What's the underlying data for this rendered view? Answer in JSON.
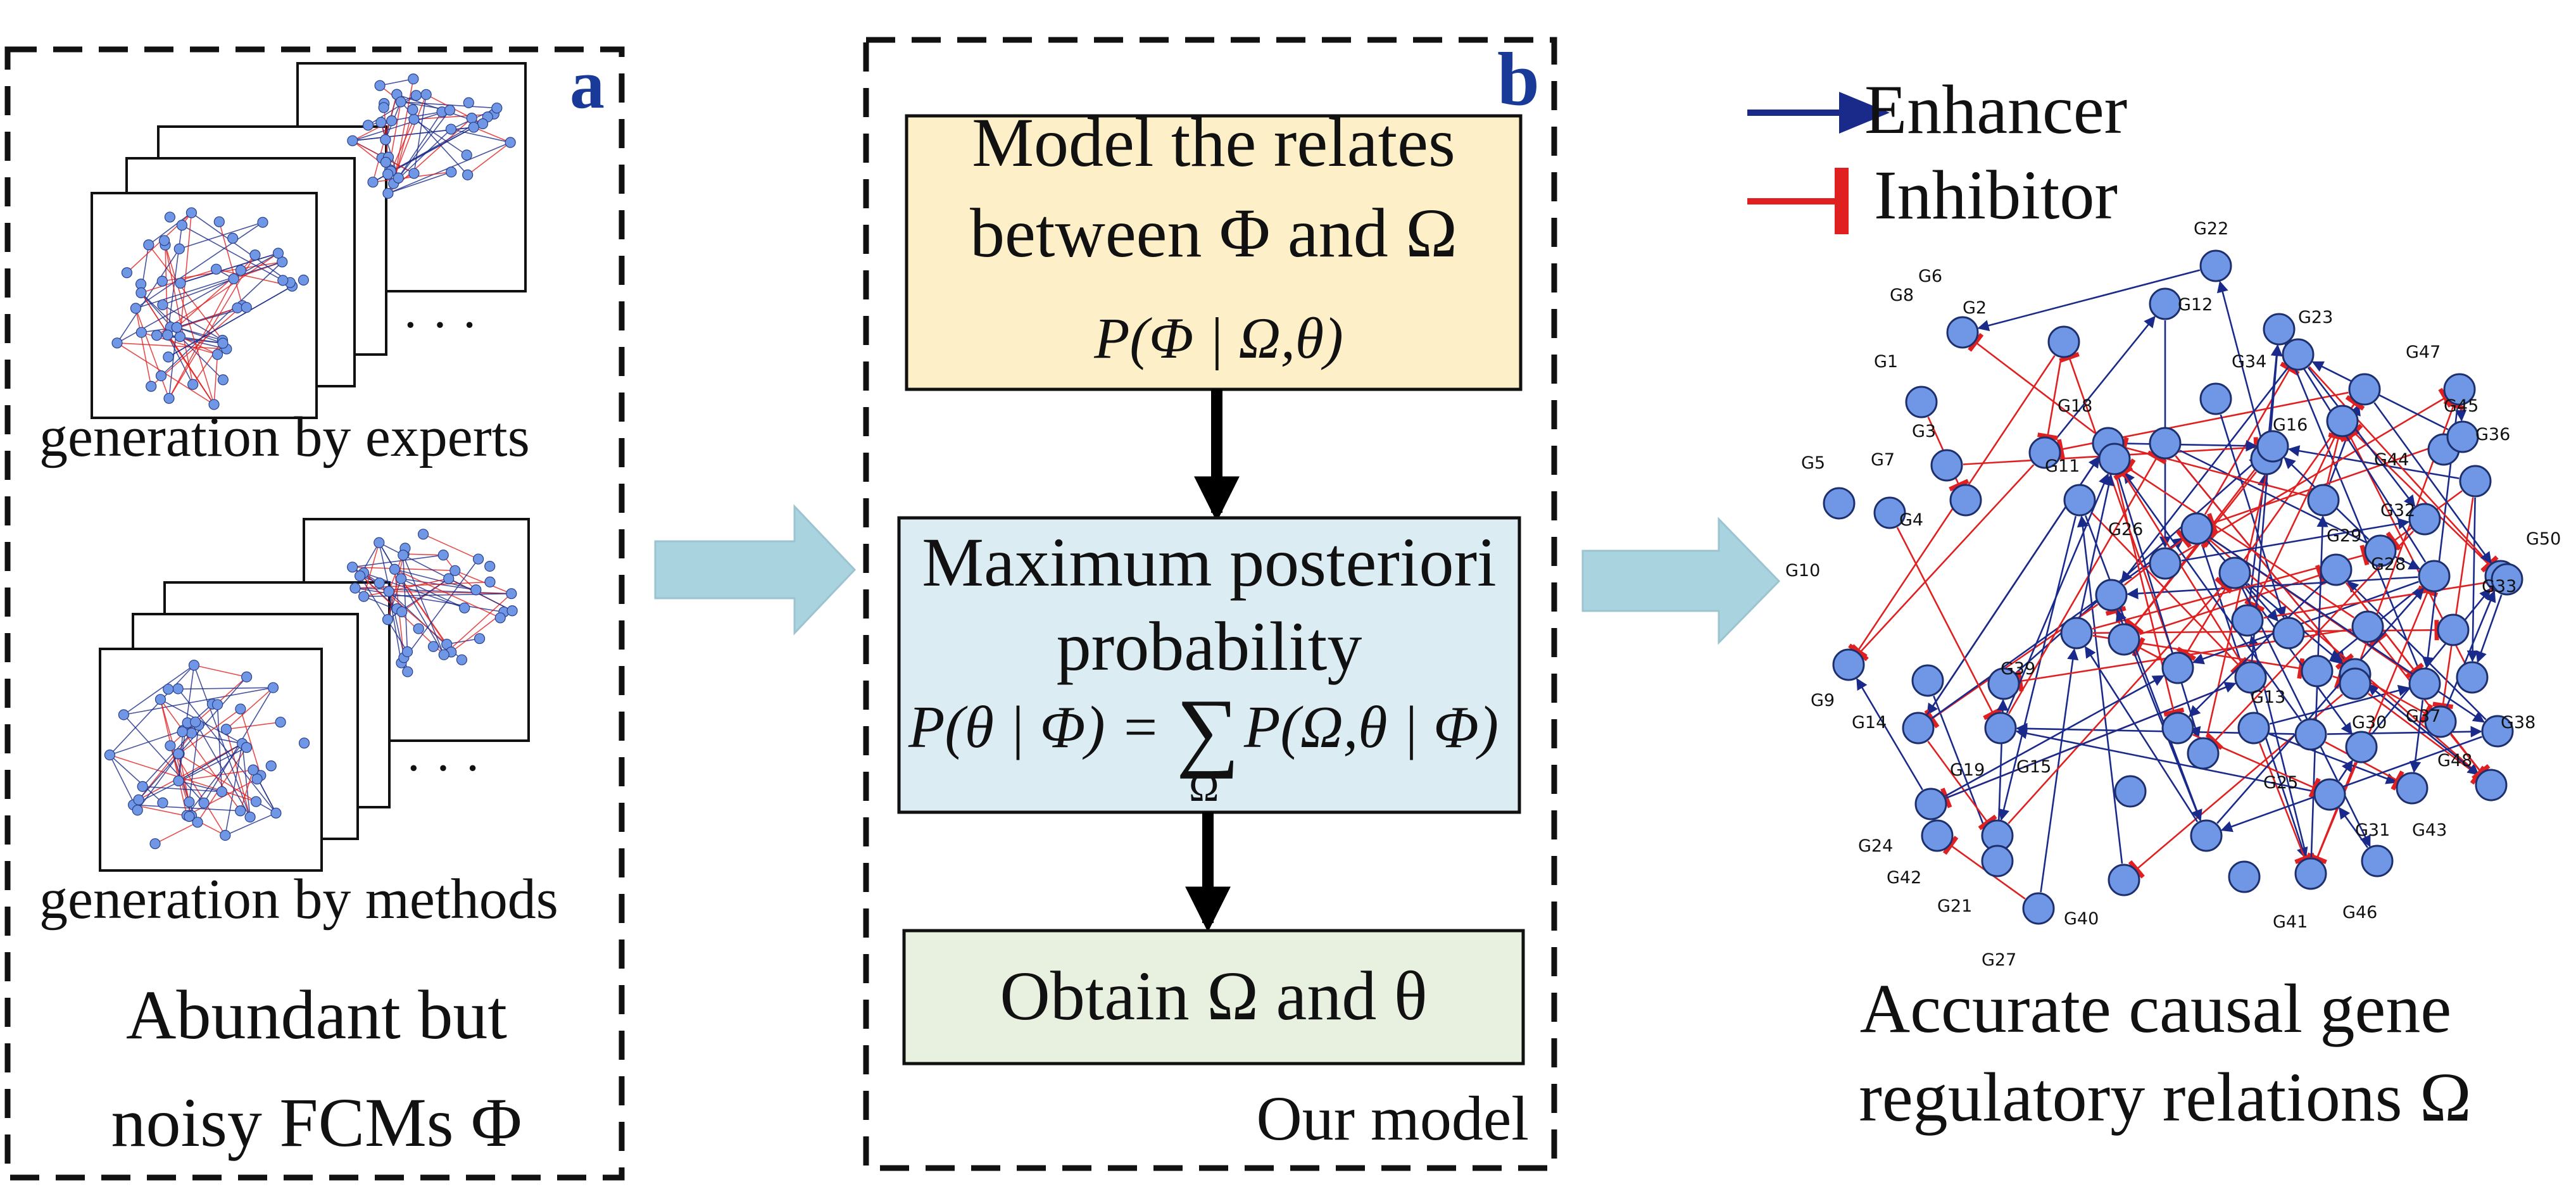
{
  "panel_a": {
    "letter": "a",
    "expert_caption": "generation by experts",
    "methods_caption": "generation by methods",
    "ellipsis": "· · ·",
    "title_line1": "Abundant but",
    "title_line2": "noisy FCMs Φ"
  },
  "panel_b": {
    "letter": "b",
    "box1_line1": "Model the relates",
    "box1_line2": "between Φ and Ω",
    "box1_formula": "P(Φ | Ω,θ)",
    "box2_line1": "Maximum posteriori",
    "box2_line2": "probability",
    "box2_formula_lhs": "P(θ | Φ) =",
    "box2_formula_sum": "∑",
    "box2_formula_sub": "Ω",
    "box2_formula_rhs": "P(Ω,θ | Φ)",
    "box3_label": "Obtain Ω and θ",
    "footer": "Our model"
  },
  "legend": {
    "enhancer": "Enhancer",
    "inhibitor": "Inhibitor"
  },
  "network_labels": [
    "G22",
    "G12",
    "G23",
    "G34",
    "G47",
    "G6",
    "G8",
    "G2",
    "G1",
    "G18",
    "G16",
    "G45",
    "G36",
    "G3",
    "G11",
    "G44",
    "G5",
    "G7",
    "G4",
    "G32",
    "G50",
    "G26",
    "G29",
    "G28",
    "G10",
    "G33",
    "G39",
    "G9",
    "G14",
    "G30",
    "G37",
    "G38",
    "G13",
    "G19",
    "G15",
    "G48",
    "G25",
    "G24",
    "G42",
    "G21",
    "G31",
    "G43",
    "G40",
    "G41",
    "G46",
    "G27"
  ],
  "caption_right_line1": "Accurate causal gene",
  "caption_right_line2": "regulatory relations Ω",
  "colors": {
    "enhancer": "#1a2a8a",
    "inhibitor": "#e02020",
    "node_fill": "#6f97e6",
    "box1_fill": "#fdf0c8",
    "box2_fill": "#dcecf3",
    "box3_fill": "#e8f1e0",
    "arrow_fill": "#a9d3df",
    "panel_letter": "#1a3a9a"
  }
}
